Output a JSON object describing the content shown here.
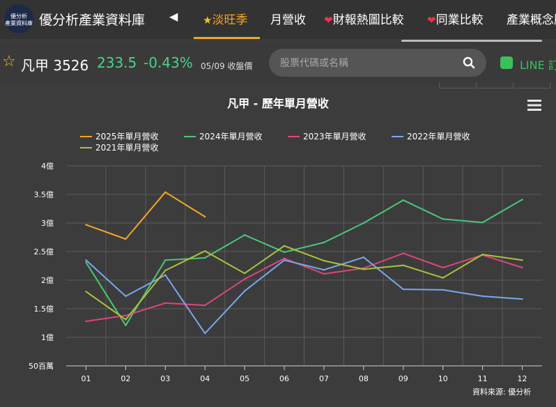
{
  "header": {
    "logo_line1": "優分析",
    "logo_line2": "產業資料庫",
    "site_title": "優分析產業資料庫",
    "nav": [
      {
        "label": "淡旺季",
        "active": true
      },
      {
        "label": "月營收",
        "active": false
      },
      {
        "label": "財報熱圖比較",
        "active": false
      },
      {
        "label": "同業比較",
        "active": false
      },
      {
        "label": "產業概念股",
        "active": false
      }
    ]
  },
  "stock": {
    "name_code": "凡甲 3526",
    "price": "233.5",
    "change": "-0.43%",
    "date": "05/09 收盤價",
    "price_color": "#4cd28a"
  },
  "search": {
    "placeholder": "股票代碼或名稱"
  },
  "line": {
    "label": "LINE 訂閱"
  },
  "source": "資料來源: 優分析",
  "chart_data": {
    "type": "line",
    "title": "凡甲 - 歷年單月營收",
    "categories": [
      "01",
      "02",
      "03",
      "04",
      "05",
      "06",
      "07",
      "08",
      "09",
      "10",
      "11",
      "12"
    ],
    "y_ticks": [
      "50百萬",
      "1億",
      "1.5億",
      "2億",
      "2.5億",
      "3億",
      "3.5億",
      "4億"
    ],
    "ylim": [
      0.5,
      4
    ],
    "grid": true,
    "legend_position": "top-left",
    "series": [
      {
        "name": "2025年單月營收",
        "color": "#f5a623",
        "values": [
          2.97,
          2.72,
          3.54,
          3.11,
          null,
          null,
          null,
          null,
          null,
          null,
          null,
          null
        ]
      },
      {
        "name": "2024年單月營收",
        "color": "#4cc77a",
        "values": [
          2.31,
          1.21,
          2.35,
          2.39,
          2.79,
          2.49,
          2.66,
          3.0,
          3.4,
          3.07,
          3.01,
          3.41
        ]
      },
      {
        "name": "2023年單月營收",
        "color": "#e0457b",
        "values": [
          1.28,
          1.38,
          1.6,
          1.56,
          2.02,
          2.38,
          2.11,
          2.21,
          2.47,
          2.22,
          2.44,
          2.22
        ]
      },
      {
        "name": "2022年單月營收",
        "color": "#7aa7ef",
        "values": [
          2.35,
          1.72,
          2.09,
          1.07,
          1.81,
          2.35,
          2.18,
          2.4,
          1.84,
          1.83,
          1.72,
          1.67
        ]
      },
      {
        "name": "2021年單月營收",
        "color": "#aac43a",
        "values": [
          1.8,
          1.31,
          2.17,
          2.51,
          2.12,
          2.6,
          2.34,
          2.19,
          2.26,
          2.04,
          2.45,
          2.35
        ]
      }
    ]
  }
}
